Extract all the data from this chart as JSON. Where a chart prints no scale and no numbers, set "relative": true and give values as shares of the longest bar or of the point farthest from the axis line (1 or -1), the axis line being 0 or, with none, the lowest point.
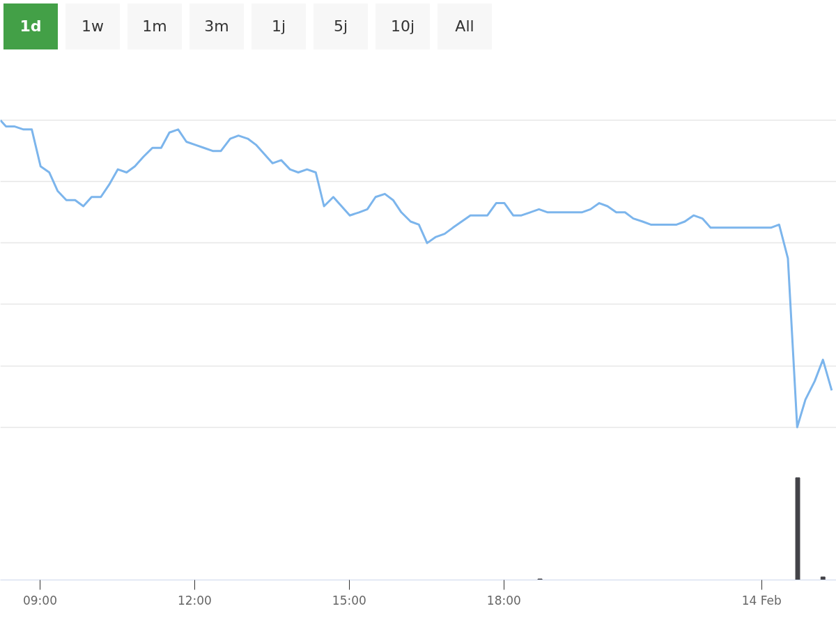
{
  "chart_data": [
    {
      "type": "line",
      "relative": true,
      "xlim": [
        8.23,
        24.45
      ],
      "tick_labels": false,
      "grid": "y",
      "marker": "none",
      "line_style": "solid",
      "annotations": [
        "1d",
        "1w",
        "1m",
        "3m",
        "1j",
        "5j",
        "10j",
        "All"
      ],
      "series": [
        {
          "color": "#7cb5ec",
          "x": [
            8.23,
            8.34,
            8.5,
            8.68,
            8.84,
            9.01,
            9.18,
            9.34,
            9.51,
            9.68,
            9.84,
            10.0,
            10.18,
            10.34,
            10.51,
            10.68,
            10.84,
            11.0,
            11.18,
            11.35,
            11.51,
            11.68,
            11.84,
            12.01,
            12.18,
            12.35,
            12.51,
            12.69,
            12.85,
            13.03,
            13.19,
            13.35,
            13.51,
            13.68,
            13.85,
            14.01,
            14.18,
            14.35,
            14.51,
            14.69,
            14.85,
            15.01,
            15.19,
            15.35,
            15.51,
            15.69,
            15.85,
            16.01,
            16.19,
            16.35,
            16.51,
            16.68,
            16.85,
            17.01,
            17.18,
            17.35,
            17.51,
            17.68,
            17.85,
            18.01,
            18.18,
            18.34,
            18.51,
            18.68,
            18.85,
            19.01,
            19.18,
            19.35,
            19.51,
            19.68,
            19.85,
            20.01,
            20.18,
            20.35,
            20.51,
            20.69,
            20.85,
            21.01,
            21.18,
            21.35,
            21.51,
            21.68,
            21.85,
            22.01,
            22.18,
            22.34,
            22.51,
            22.68,
            22.84,
            23.01,
            23.18,
            23.34,
            23.51,
            23.69,
            23.85,
            24.03,
            24.19,
            24.36
          ],
          "values": [
            1.0,
            0.98,
            0.98,
            0.97,
            0.97,
            0.85,
            0.83,
            0.77,
            0.74,
            0.74,
            0.72,
            0.75,
            0.75,
            0.79,
            0.84,
            0.83,
            0.85,
            0.88,
            0.91,
            0.91,
            0.96,
            0.97,
            0.93,
            0.92,
            0.91,
            0.9,
            0.9,
            0.94,
            0.95,
            0.94,
            0.92,
            0.89,
            0.86,
            0.87,
            0.84,
            0.83,
            0.84,
            0.83,
            0.72,
            0.75,
            0.72,
            0.69,
            0.7,
            0.71,
            0.75,
            0.76,
            0.74,
            0.7,
            0.67,
            0.66,
            0.6,
            0.62,
            0.63,
            0.65,
            0.67,
            0.69,
            0.69,
            0.69,
            0.73,
            0.73,
            0.69,
            0.69,
            0.7,
            0.71,
            0.7,
            0.7,
            0.7,
            0.7,
            0.7,
            0.71,
            0.73,
            0.72,
            0.7,
            0.7,
            0.68,
            0.67,
            0.66,
            0.66,
            0.66,
            0.66,
            0.67,
            0.69,
            0.68,
            0.65,
            0.65,
            0.65,
            0.65,
            0.65,
            0.65,
            0.65,
            0.65,
            0.66,
            0.55,
            0.0,
            0.09,
            0.15,
            0.22,
            0.12
          ]
        }
      ]
    },
    {
      "type": "bar",
      "relative": true,
      "xlim": [
        8.23,
        24.45
      ],
      "tick_labels": "x",
      "grid": false,
      "xticks": [
        {
          "value": 9,
          "label": "09:00"
        },
        {
          "value": 12,
          "label": "12:00"
        },
        {
          "value": 15,
          "label": "15:00"
        },
        {
          "value": 18,
          "label": "18:00"
        },
        {
          "value": 23,
          "label": "14 Feb"
        }
      ],
      "x": [
        18.7,
        23.7,
        24.19
      ],
      "values": [
        0.01,
        1.0,
        0.03
      ],
      "color": "#434348"
    }
  ]
}
